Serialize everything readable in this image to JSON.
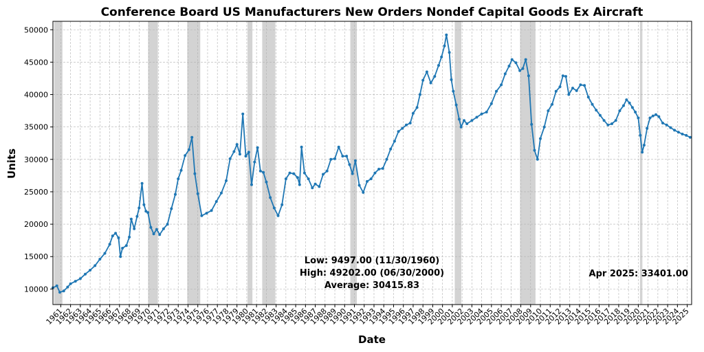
{
  "chart_data": {
    "type": "line",
    "title": "Conference Board US Manufacturers New Orders Nondef Capital Goods Ex Aircraft",
    "xlabel": "Date",
    "ylabel": "Units",
    "xlim": [
      1960.2,
      2025.45
    ],
    "ylim": [
      7600,
      51300
    ],
    "grid": true,
    "y_ticks": [
      10000,
      15000,
      20000,
      25000,
      30000,
      35000,
      40000,
      45000,
      50000
    ],
    "y_tick_labels": [
      "10000",
      "15000",
      "20000",
      "25000",
      "30000",
      "35000",
      "40000",
      "45000",
      "50000"
    ],
    "x_tick_labels": [
      "1961",
      "1962",
      "1963",
      "1964",
      "1965",
      "1966",
      "1967",
      "1968",
      "1969",
      "1970",
      "1971",
      "1972",
      "1973",
      "1974",
      "1975",
      "1976",
      "1977",
      "1978",
      "1979",
      "1980",
      "1981",
      "1982",
      "1983",
      "1984",
      "1985",
      "1986",
      "1987",
      "1988",
      "1989",
      "1990",
      "1991",
      "1992",
      "1993",
      "1994",
      "1995",
      "1996",
      "1997",
      "1998",
      "1999",
      "2000",
      "2001",
      "2002",
      "2003",
      "2004",
      "2005",
      "2006",
      "2007",
      "2008",
      "2009",
      "2010",
      "2011",
      "2012",
      "2013",
      "2014",
      "2015",
      "2016",
      "2017",
      "2018",
      "2019",
      "2020",
      "2021",
      "2022",
      "2023",
      "2024",
      "2025"
    ],
    "recessions": [
      [
        1960.33,
        1961.17
      ],
      [
        1969.92,
        1970.92
      ],
      [
        1973.92,
        1975.25
      ],
      [
        1980.08,
        1980.58
      ],
      [
        1981.58,
        1982.92
      ],
      [
        1990.58,
        1991.25
      ],
      [
        2001.25,
        2001.92
      ],
      [
        2007.92,
        2009.5
      ],
      [
        2020.17,
        2020.42
      ]
    ],
    "series": [
      {
        "color": "#1f77b4",
        "x": [
          1960.2,
          1960.6,
          1960.9,
          1961.3,
          1961.7,
          1962.0,
          1962.5,
          1963.0,
          1963.5,
          1964.0,
          1964.5,
          1965.0,
          1965.5,
          1966.0,
          1966.3,
          1966.6,
          1966.9,
          1967.1,
          1967.3,
          1967.7,
          1968.0,
          1968.2,
          1968.5,
          1968.8,
          1969.0,
          1969.3,
          1969.5,
          1969.7,
          1969.9,
          1970.2,
          1970.5,
          1970.8,
          1971.1,
          1971.5,
          1971.9,
          1972.3,
          1972.7,
          1973.0,
          1973.3,
          1973.7,
          1974.1,
          1974.4,
          1974.7,
          1975.0,
          1975.4,
          1975.9,
          1976.4,
          1976.9,
          1977.4,
          1977.9,
          1978.3,
          1978.7,
          1979.0,
          1979.3,
          1979.6,
          1979.9,
          1980.2,
          1980.5,
          1980.8,
          1981.1,
          1981.4,
          1981.7,
          1982.0,
          1982.4,
          1982.8,
          1983.2,
          1983.6,
          1984.0,
          1984.4,
          1984.8,
          1985.2,
          1985.4,
          1985.6,
          1985.9,
          1986.3,
          1986.7,
          1987.0,
          1987.4,
          1987.8,
          1988.2,
          1988.6,
          1989.0,
          1989.4,
          1989.8,
          1990.2,
          1990.5,
          1990.8,
          1991.1,
          1991.5,
          1991.9,
          1992.3,
          1992.7,
          1993.1,
          1993.5,
          1993.9,
          1994.3,
          1994.7,
          1995.1,
          1995.5,
          1995.9,
          1996.3,
          1996.7,
          1997.0,
          1997.4,
          1997.7,
          1998.0,
          1998.4,
          1998.8,
          1999.2,
          1999.6,
          1999.9,
          2000.2,
          2000.4,
          2000.7,
          2000.9,
          2001.1,
          2001.4,
          2001.7,
          2001.9,
          2002.2,
          2002.5,
          2003.0,
          2003.5,
          2004.0,
          2004.5,
          2005.0,
          2005.5,
          2006.0,
          2006.4,
          2006.8,
          2007.1,
          2007.5,
          2007.9,
          2008.2,
          2008.5,
          2008.8,
          2009.1,
          2009.4,
          2009.7,
          2010.0,
          2010.4,
          2010.8,
          2011.2,
          2011.6,
          2012.0,
          2012.3,
          2012.6,
          2012.9,
          2013.3,
          2013.7,
          2014.1,
          2014.5,
          2014.9,
          2015.3,
          2015.7,
          2016.1,
          2016.5,
          2016.9,
          2017.3,
          2017.7,
          2018.1,
          2018.5,
          2018.8,
          2019.1,
          2019.4,
          2019.7,
          2020.0,
          2020.2,
          2020.4,
          2020.6,
          2020.9,
          2021.2,
          2021.5,
          2021.8,
          2022.1,
          2022.5,
          2022.9,
          2023.3,
          2023.7,
          2024.1,
          2024.5,
          2024.9,
          2025.3
        ],
        "y": [
          10200,
          10500,
          9497,
          9700,
          10300,
          10800,
          11200,
          11600,
          12300,
          12900,
          13600,
          14600,
          15500,
          16900,
          18200,
          18600,
          17900,
          15000,
          16300,
          16700,
          18000,
          20800,
          19300,
          21200,
          22500,
          26300,
          23000,
          22000,
          21800,
          19500,
          18500,
          19200,
          18400,
          19300,
          20000,
          22400,
          24600,
          27000,
          28300,
          30600,
          31500,
          33400,
          27800,
          24700,
          21300,
          21700,
          22100,
          23500,
          24800,
          26700,
          30100,
          31200,
          32300,
          30800,
          37000,
          30500,
          31100,
          26100,
          29600,
          31800,
          28200,
          28000,
          26500,
          24100,
          22500,
          21300,
          23000,
          27000,
          27900,
          27800,
          27200,
          26100,
          31900,
          27900,
          27000,
          25600,
          26200,
          25800,
          27700,
          28200,
          30000,
          30100,
          31900,
          30500,
          30500,
          29200,
          27800,
          29800,
          26000,
          24900,
          26600,
          27000,
          27900,
          28500,
          28600,
          30000,
          31600,
          32800,
          34300,
          34800,
          35300,
          35600,
          37100,
          38000,
          40000,
          42200,
          43500,
          41800,
          42800,
          44500,
          45800,
          47500,
          49202,
          46500,
          42300,
          40500,
          38400,
          36200,
          35000,
          36000,
          35500,
          36000,
          36500,
          37000,
          37300,
          38600,
          40500,
          41500,
          43200,
          44400,
          45400,
          44900,
          43700,
          44000,
          45400,
          42900,
          35400,
          31400,
          30000,
          33200,
          35000,
          37500,
          38500,
          40500,
          41200,
          42900,
          42800,
          40000,
          41000,
          40600,
          41500,
          41400,
          39600,
          38500,
          37600,
          36800,
          36000,
          35300,
          35500,
          36000,
          37500,
          38300,
          39200,
          38700,
          38000,
          37300,
          36400,
          33700,
          31100,
          32200,
          34800,
          36400,
          36700,
          36900,
          36600,
          35600,
          35300,
          34900,
          34500,
          34200,
          33900,
          33700,
          33401
        ]
      }
    ],
    "annotations": {
      "low": "Low: 9497.00 (11/30/1960)",
      "high": "High: 49202.00 (06/30/2000)",
      "average": "Average: 30415.83",
      "latest": "Apr 2025: 33401.00"
    }
  }
}
